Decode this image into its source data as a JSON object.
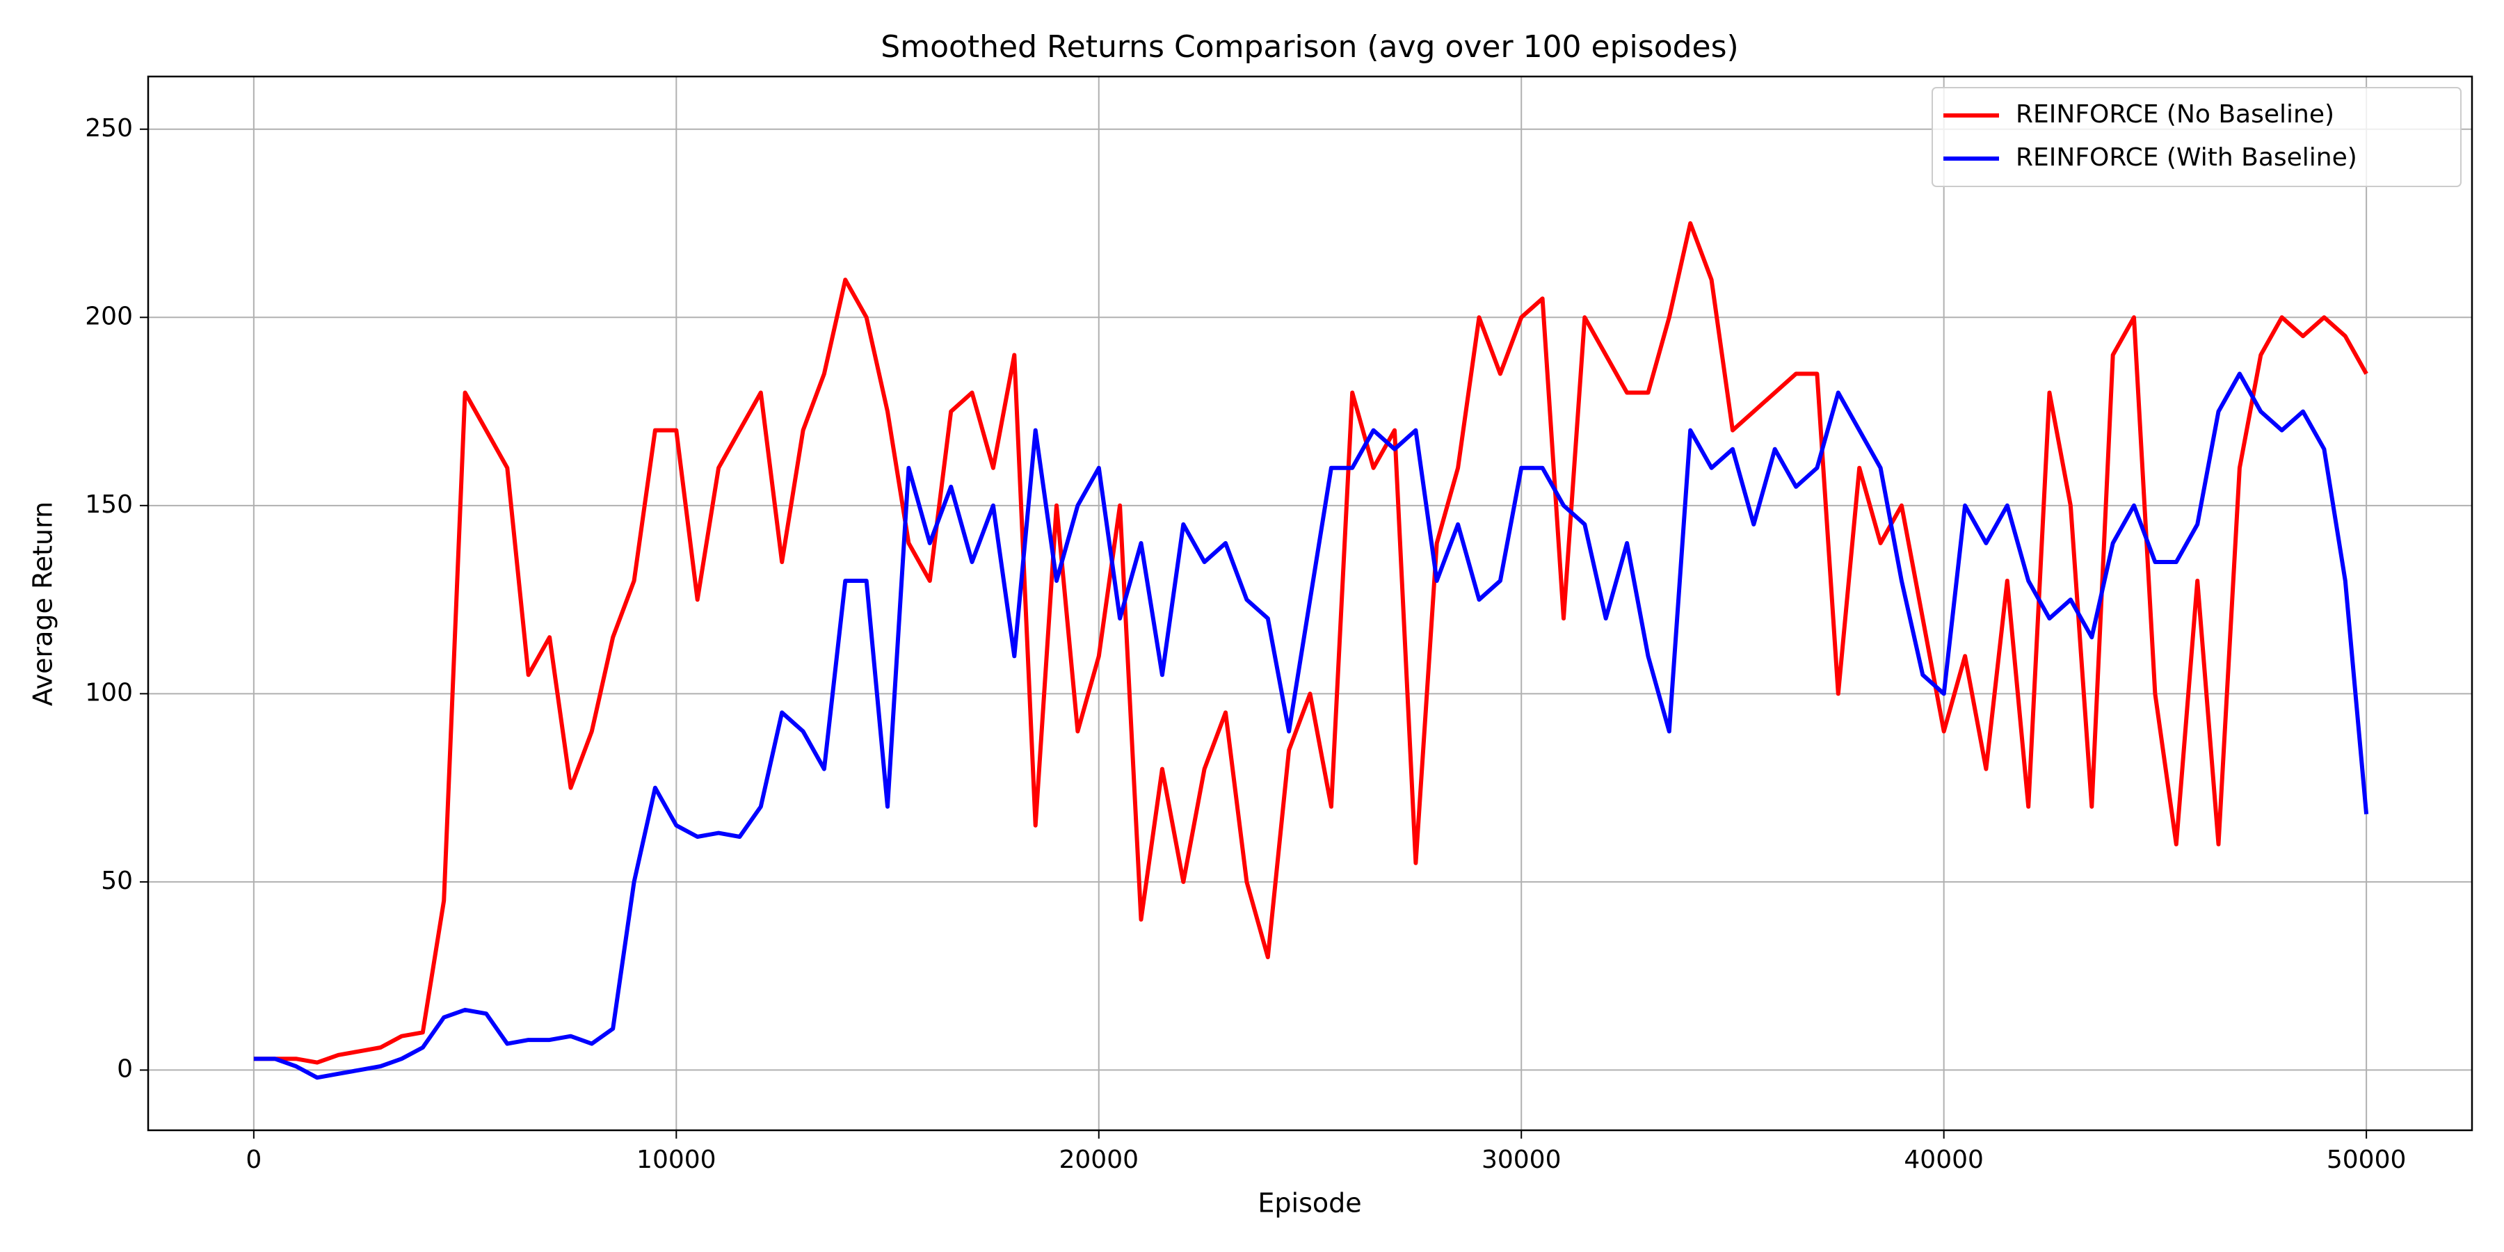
{
  "chart_data": {
    "type": "line",
    "title": "Smoothed Returns Comparison (avg over 100 episodes)",
    "x_label": "Episode",
    "y_label": "Average Return",
    "x": [
      0,
      500,
      1000,
      1500,
      2000,
      2500,
      3000,
      3500,
      4000,
      4500,
      5000,
      5500,
      6000,
      6500,
      7000,
      7500,
      8000,
      8500,
      9000,
      9500,
      10000,
      10500,
      11000,
      11500,
      12000,
      12500,
      13000,
      13500,
      14000,
      14500,
      15000,
      15500,
      16000,
      16500,
      17000,
      17500,
      18000,
      18500,
      19000,
      19500,
      20000,
      20500,
      21000,
      21500,
      22000,
      22500,
      23000,
      23500,
      24000,
      24500,
      25000,
      25500,
      26000,
      26500,
      27000,
      27500,
      28000,
      28500,
      29000,
      29500,
      30000,
      30500,
      31000,
      31500,
      32000,
      32500,
      33000,
      33500,
      34000,
      34500,
      35000,
      35500,
      36000,
      36500,
      37000,
      37500,
      38000,
      38500,
      39000,
      39500,
      40000,
      40500,
      41000,
      41500,
      42000,
      42500,
      43000,
      43500,
      44000,
      44500,
      45000,
      45500,
      46000,
      46500,
      47000,
      47500,
      48000,
      48500,
      49000,
      49500,
      50000
    ],
    "series": [
      {
        "name": "REINFORCE (No Baseline)",
        "color": "#ff0000",
        "values": [
          3,
          3,
          3,
          2,
          4,
          5,
          6,
          9,
          10,
          45,
          180,
          170,
          160,
          105,
          115,
          75,
          90,
          115,
          130,
          170,
          170,
          125,
          160,
          170,
          180,
          135,
          170,
          185,
          210,
          200,
          175,
          140,
          130,
          175,
          180,
          160,
          190,
          65,
          150,
          90,
          110,
          150,
          40,
          80,
          50,
          80,
          95,
          50,
          30,
          85,
          100,
          70,
          180,
          160,
          170,
          55,
          140,
          160,
          200,
          185,
          200,
          205,
          120,
          200,
          190,
          180,
          180,
          200,
          225,
          210,
          170,
          175,
          180,
          185,
          185,
          100,
          160,
          140,
          150,
          120,
          90,
          110,
          80,
          130,
          70,
          180,
          150,
          70,
          190,
          200,
          100,
          60,
          130,
          60,
          160,
          190,
          200,
          195,
          200,
          195,
          185
        ]
      },
      {
        "name": "REINFORCE (With Baseline)",
        "color": "#0000ff",
        "values": [
          3,
          3,
          1,
          -2,
          -1,
          0,
          1,
          3,
          6,
          14,
          16,
          15,
          7,
          8,
          8,
          9,
          7,
          11,
          50,
          75,
          65,
          62,
          63,
          62,
          70,
          95,
          90,
          80,
          130,
          130,
          70,
          160,
          140,
          155,
          135,
          150,
          110,
          170,
          130,
          150,
          160,
          120,
          140,
          105,
          145,
          135,
          140,
          125,
          120,
          90,
          125,
          160,
          160,
          170,
          165,
          170,
          130,
          145,
          125,
          130,
          160,
          160,
          150,
          145,
          120,
          140,
          110,
          90,
          170,
          160,
          165,
          145,
          165,
          155,
          160,
          180,
          170,
          160,
          130,
          105,
          100,
          150,
          140,
          150,
          130,
          120,
          125,
          115,
          140,
          150,
          135,
          135,
          145,
          175,
          185,
          175,
          170,
          175,
          165,
          130,
          68
        ]
      }
    ],
    "xlim": [
      -2500,
      52500
    ],
    "ylim": [
      -16,
      264
    ],
    "xticks": [
      0,
      10000,
      20000,
      30000,
      40000,
      50000
    ],
    "yticks": [
      0,
      50,
      100,
      150,
      200,
      250
    ],
    "grid": true,
    "legend": "upper right"
  }
}
